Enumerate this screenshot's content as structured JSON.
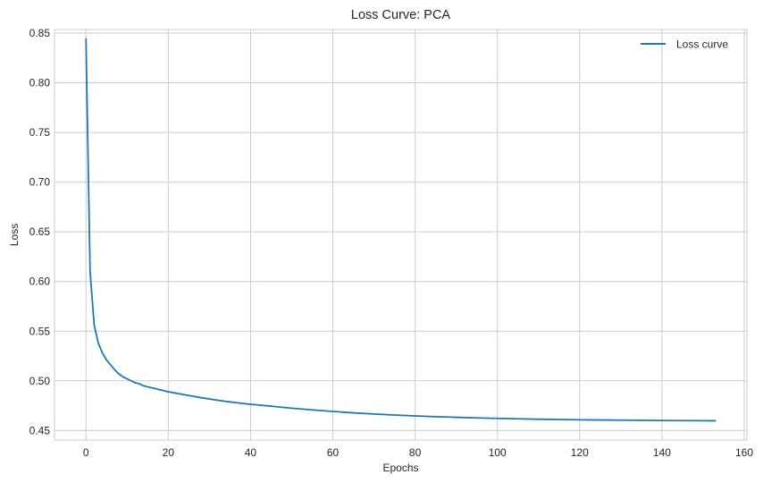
{
  "chart_data": {
    "type": "line",
    "title": "Loss Curve: PCA",
    "xlabel": "Epochs",
    "ylabel": "Loss",
    "xlim": [
      -7.65,
      160.65
    ],
    "ylim": [
      0.4404,
      0.8536
    ],
    "xticks": [
      0,
      20,
      40,
      60,
      80,
      100,
      120,
      140,
      160
    ],
    "yticks": [
      0.45,
      0.5,
      0.55,
      0.6,
      0.65,
      0.7,
      0.75,
      0.8,
      0.85
    ],
    "ytick_labels": [
      "0.45",
      "0.50",
      "0.55",
      "0.60",
      "0.65",
      "0.70",
      "0.75",
      "0.80",
      "0.85"
    ],
    "grid": true,
    "legend_position": "top-right",
    "colors": {
      "line": "#1f77b4",
      "grid": "#cccccc",
      "axes_edge": "#cccccc"
    },
    "series": [
      {
        "name": "Loss curve",
        "x": [
          0,
          1,
          2,
          3,
          4,
          5,
          6,
          7,
          8,
          9,
          10,
          11,
          12,
          13,
          14,
          15,
          16,
          17,
          18,
          19,
          20,
          22,
          24,
          26,
          28,
          30,
          32,
          34,
          36,
          38,
          40,
          45,
          50,
          55,
          60,
          65,
          70,
          75,
          80,
          85,
          90,
          95,
          100,
          105,
          110,
          115,
          120,
          125,
          130,
          135,
          140,
          145,
          150,
          153
        ],
        "y": [
          0.844,
          0.61,
          0.556,
          0.538,
          0.528,
          0.521,
          0.516,
          0.511,
          0.507,
          0.504,
          0.502,
          0.5,
          0.498,
          0.497,
          0.495,
          0.494,
          0.493,
          0.492,
          0.491,
          0.49,
          0.489,
          0.4875,
          0.486,
          0.4845,
          0.483,
          0.4818,
          0.4805,
          0.4793,
          0.4783,
          0.4773,
          0.4764,
          0.4745,
          0.4725,
          0.4708,
          0.4692,
          0.4678,
          0.4666,
          0.4656,
          0.4647,
          0.4639,
          0.4633,
          0.4627,
          0.4622,
          0.4618,
          0.4614,
          0.4611,
          0.4608,
          0.4606,
          0.4604,
          0.4603,
          0.4601,
          0.46,
          0.4599,
          0.4598
        ]
      }
    ]
  }
}
